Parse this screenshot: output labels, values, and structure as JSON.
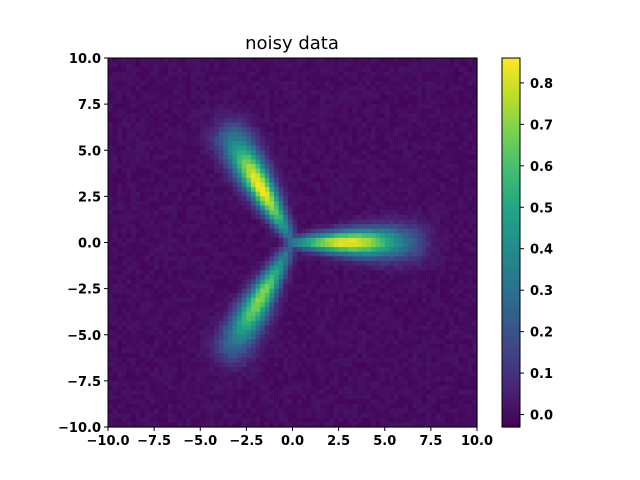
{
  "chart_data": {
    "type": "heatmap",
    "title": "noisy data",
    "xlabel": "",
    "ylabel": "",
    "xlim": [
      -10,
      10
    ],
    "ylim": [
      -10,
      10
    ],
    "x_ticks": [
      -10.0,
      -7.5,
      -5.0,
      -2.5,
      0.0,
      2.5,
      5.0,
      7.5,
      10.0
    ],
    "x_tick_labels": [
      "−10.0",
      "−7.5",
      "−5.0",
      "−2.5",
      "0.0",
      "2.5",
      "5.0",
      "7.5",
      "10.0"
    ],
    "y_ticks": [
      10.0,
      7.5,
      5.0,
      2.5,
      0.0,
      -2.5,
      -5.0,
      -7.5,
      -10.0
    ],
    "y_tick_labels": [
      "10.0",
      "7.5",
      "5.0",
      "2.5",
      "0.0",
      "−2.5",
      "−5.0",
      "−7.5",
      "−10.0"
    ],
    "colormap": "viridis",
    "grid": "off",
    "grid_resolution": [
      80,
      80
    ],
    "color_range": [
      -0.03,
      0.86
    ],
    "colorbar_ticks": [
      0.8,
      0.7,
      0.6,
      0.5,
      0.4,
      0.3,
      0.2,
      0.1,
      0.0
    ],
    "colorbar_tick_labels": [
      "0.8",
      "0.7",
      "0.6",
      "0.5",
      "0.4",
      "0.3",
      "0.2",
      "0.1",
      "0.0"
    ],
    "structure": {
      "description_of_signal": "three Gaussian-profile arms radiating from the origin",
      "arms": [
        {
          "direction_deg": 0,
          "peak_at_distance": 3.0,
          "peak_value": 0.85,
          "extent": 7.0
        },
        {
          "direction_deg": 120,
          "peak_at_distance": 3.5,
          "peak_value": 0.86,
          "extent": 7.0
        },
        {
          "direction_deg": 240,
          "peak_at_distance": 3.5,
          "peak_value": 0.7,
          "extent": 7.0
        }
      ],
      "noise_level": 0.02
    }
  }
}
